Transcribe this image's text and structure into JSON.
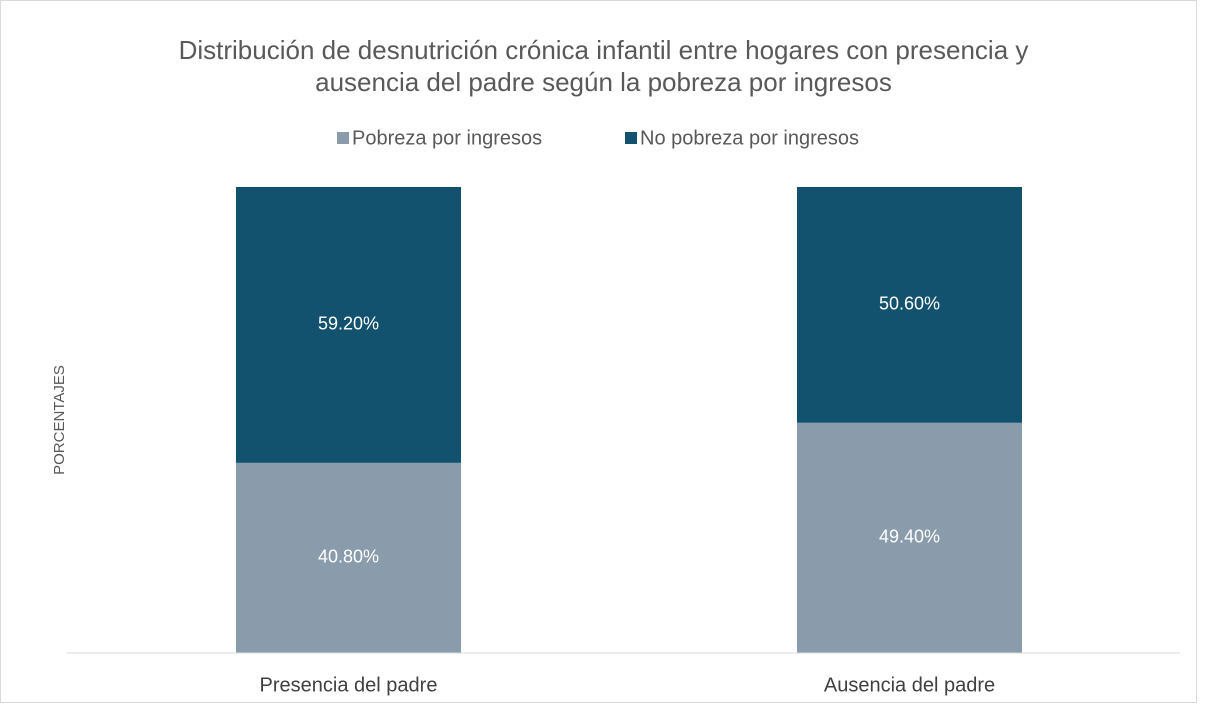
{
  "chart_data": {
    "type": "stacked_bar",
    "title": "Distribución de desnutrición crónica infantil entre hogares con presencia y ausencia del padre según la pobreza por ingresos",
    "y_label": "PORCENTAJES",
    "categories": [
      "Presencia del padre",
      "Ausencia del padre"
    ],
    "series": [
      {
        "name": "Pobreza por ingresos",
        "color": "#8a9bab",
        "values": [
          40.8,
          49.4
        ],
        "value_labels": [
          "40.80%",
          "49.40%"
        ]
      },
      {
        "name": "No pobreza por ingresos",
        "color": "#12526e",
        "values": [
          59.2,
          50.6
        ],
        "value_labels": [
          "59.20%",
          "50.60%"
        ]
      }
    ],
    "ylim": [
      0,
      100
    ],
    "legend": "top"
  }
}
